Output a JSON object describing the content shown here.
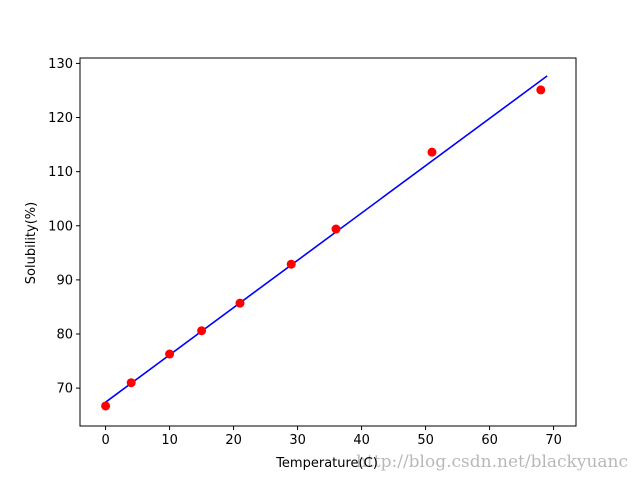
{
  "chart_data": {
    "type": "scatter",
    "xlabel": "Temperature(C)",
    "ylabel": "Solubility(%)",
    "xlim": [
      -4,
      73.5
    ],
    "ylim": [
      63,
      131
    ],
    "xticks": [
      0,
      10,
      20,
      30,
      40,
      50,
      60,
      70
    ],
    "yticks": [
      70,
      80,
      90,
      100,
      110,
      120,
      130
    ],
    "grid": false,
    "series": [
      {
        "kind": "scatter",
        "color": "#ff0000",
        "x": [
          0,
          4,
          10,
          15,
          21,
          29,
          36,
          51,
          68
        ],
        "y": [
          66.7,
          71.0,
          76.3,
          80.6,
          85.7,
          92.9,
          99.4,
          113.6,
          125.1
        ]
      },
      {
        "kind": "line",
        "color": "#0000ff",
        "x": [
          0,
          69
        ],
        "y": [
          67.4,
          127.7
        ]
      }
    ]
  },
  "watermark": "http://blog.csdn.net/blackyuanc"
}
